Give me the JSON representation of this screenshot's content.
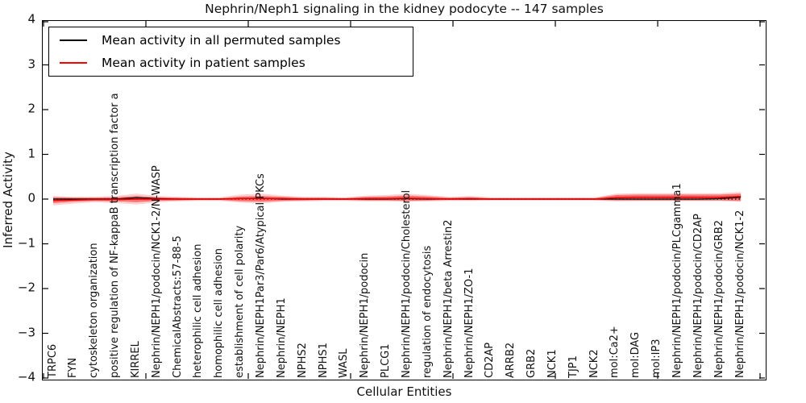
{
  "title": "Nephrin/Neph1 signaling in the kidney podocyte -- 147 samples",
  "axes": {
    "ylabel": "Inferred Activity",
    "xlabel": "Cellular Entities",
    "yticklabels": [
      "4",
      "3",
      "2",
      "1",
      "0",
      "−1",
      "−2",
      "−3",
      "−4"
    ]
  },
  "legend": {
    "entries": [
      {
        "label": "Mean activity in all permuted samples",
        "color": "#000000"
      },
      {
        "label": "Mean activity in patient samples",
        "color": "#ff0000"
      }
    ]
  },
  "chart_data": {
    "type": "line",
    "title": "Nephrin/Neph1 signaling in the kidney podocyte -- 147 samples",
    "xlabel": "Cellular Entities",
    "ylabel": "Inferred Activity",
    "ylim": [
      -4,
      4
    ],
    "yticks": [
      4,
      3,
      2,
      1,
      0,
      -1,
      -2,
      -3,
      -4
    ],
    "grid": false,
    "legend_position": "upper left",
    "categories": [
      "TRPC6",
      "FYN",
      "cytoskeleton organization",
      "positive regulation of NF-kappaB transcription factor a",
      "KIRREL",
      "Nephrin/NEPH1/podocin/NCK1-2/N-WASP",
      "ChemicalAbstracts:57-88-5",
      "heterophilic cell adhesion",
      "homophilic cell adhesion",
      "establishment of cell polarity",
      "Nephrin/NEPH1Par3/Par6/Atypical PKCs",
      "Nephrin/NEPH1",
      "NPHS2",
      "NPHS1",
      "WASL",
      "Nephrin/NEPH1/podocin",
      "PLCG1",
      "Nephrin/NEPH1/podocin/Cholesterol",
      "regulation of endocytosis",
      "Nephrin/NEPH1/beta Arrestin2",
      "Nephrin/NEPH1/ZO-1",
      "CD2AP",
      "ARRB2",
      "GRB2",
      "NCK1",
      "TJP1",
      "NCK2",
      "mol:Ca2+",
      "mol:DAG",
      "mol:IP3",
      "Nephrin/NEPH1/podocin/PLCgamma1",
      "Nephrin/NEPH1/podocin/CD2AP",
      "Nephrin/NEPH1/podocin/GRB2",
      "Nephrin/NEPH1/podocin/NCK1-2"
    ],
    "series": [
      {
        "name": "Mean activity in all permuted samples",
        "color": "#000000",
        "values": [
          0,
          0,
          0,
          0,
          0.03,
          0.01,
          0,
          0,
          0,
          0.01,
          0.02,
          0,
          0,
          0,
          0,
          0,
          0,
          0.01,
          0,
          0,
          0,
          0,
          0,
          0,
          0,
          0,
          0,
          0,
          0,
          0,
          0,
          0,
          0.01,
          0.04
        ]
      },
      {
        "name": "Mean activity in patient samples",
        "color": "#e60000",
        "values": [
          -0.03,
          -0.02,
          -0.01,
          -0.01,
          0,
          0,
          0,
          0,
          0,
          0.01,
          0.01,
          0.01,
          0,
          0,
          0,
          0.01,
          0.01,
          0.02,
          0.01,
          0,
          0.01,
          0,
          0,
          0,
          0,
          0,
          0,
          0.03,
          0.04,
          0.04,
          0.04,
          0.04,
          0.04,
          0.06
        ]
      }
    ],
    "bands": [
      {
        "name": "patient-band-outer",
        "color": "#ff0000",
        "opacity": 0.18,
        "lower": [
          -0.14,
          -0.1,
          -0.07,
          -0.09,
          -0.12,
          -0.07,
          -0.05,
          -0.04,
          -0.04,
          -0.08,
          -0.1,
          -0.06,
          -0.05,
          -0.04,
          -0.04,
          -0.05,
          -0.05,
          -0.06,
          -0.05,
          -0.04,
          -0.04,
          -0.03,
          -0.03,
          -0.03,
          -0.03,
          -0.03,
          -0.03,
          -0.05,
          -0.04,
          -0.04,
          -0.04,
          -0.04,
          -0.04,
          -0.06
        ],
        "upper": [
          0.07,
          0.05,
          0.05,
          0.07,
          0.12,
          0.07,
          0.05,
          0.04,
          0.04,
          0.1,
          0.12,
          0.08,
          0.05,
          0.05,
          0.04,
          0.08,
          0.09,
          0.12,
          0.09,
          0.05,
          0.07,
          0.04,
          0.04,
          0.04,
          0.04,
          0.04,
          0.04,
          0.12,
          0.13,
          0.13,
          0.13,
          0.13,
          0.13,
          0.16
        ]
      },
      {
        "name": "patient-band-inner",
        "color": "#ff0000",
        "opacity": 0.45,
        "lower": [
          -0.09,
          -0.06,
          -0.04,
          -0.05,
          -0.07,
          -0.04,
          -0.03,
          -0.02,
          -0.02,
          -0.05,
          -0.06,
          -0.04,
          -0.03,
          -0.02,
          -0.02,
          -0.03,
          -0.03,
          -0.04,
          -0.03,
          -0.02,
          -0.02,
          -0.02,
          -0.02,
          -0.02,
          -0.02,
          -0.02,
          -0.02,
          -0.03,
          -0.03,
          -0.03,
          -0.03,
          -0.03,
          -0.03,
          -0.04
        ],
        "upper": [
          0.04,
          0.03,
          0.03,
          0.04,
          0.07,
          0.04,
          0.03,
          0.02,
          0.02,
          0.06,
          0.07,
          0.05,
          0.03,
          0.03,
          0.02,
          0.05,
          0.06,
          0.08,
          0.06,
          0.03,
          0.04,
          0.02,
          0.02,
          0.02,
          0.02,
          0.02,
          0.02,
          0.09,
          0.1,
          0.1,
          0.1,
          0.1,
          0.1,
          0.12
        ]
      }
    ],
    "zero_line": {
      "y": 0,
      "style": "dotted",
      "color": "#000000"
    }
  }
}
